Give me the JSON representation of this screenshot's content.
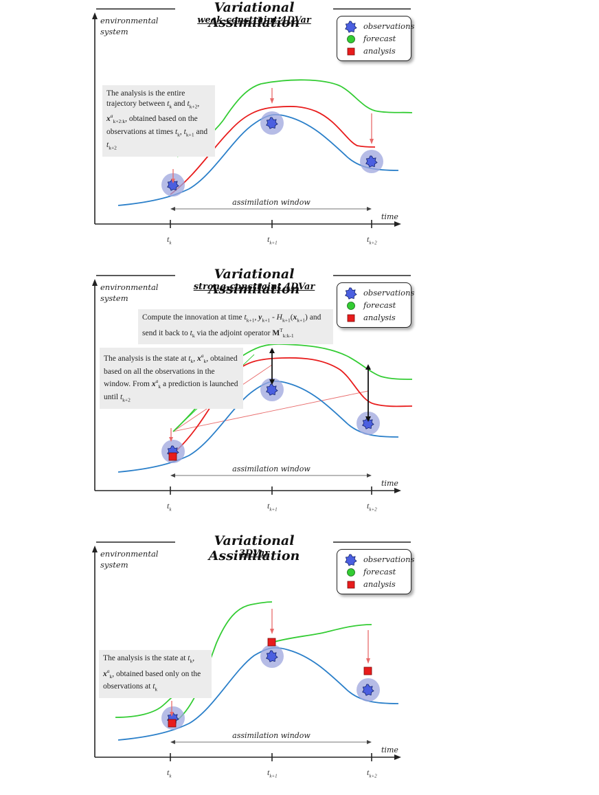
{
  "common": {
    "title": "Variational Assimilation",
    "ylabel_line1": "environmental",
    "ylabel_line2": "system",
    "time_label": "time",
    "window_label": "assimilation window",
    "ticks": [
      "t",
      "t",
      "t"
    ],
    "tick_subs": [
      "k",
      "k+1",
      "k+2"
    ],
    "legend": {
      "observations": "observations",
      "forecast": "forecast",
      "analysis": "analysis"
    },
    "colors": {
      "observation_fill": "#4b5fe0",
      "observation_halo": "#9ea6de",
      "forecast": "#33cc33",
      "analysis": "#e81c1c",
      "truth": "#2a7fc9",
      "arrow": "#e86a6a"
    }
  },
  "panels": [
    {
      "subtitle": "weak-constraint 4DVar",
      "note": "The analysis is the entire trajectory between t_k and t_k+2, x^a_k+2:k, obtained based on the observations at times t_k, t_k+1 and t_k+2"
    },
    {
      "subtitle": "strong-constraint 4DVar",
      "innovation_note": "Compute the innovation at time t_k+1, y_k+1 - H_k+1(x_k+1) and send it back to t_k via the adjoint operator M^T_k:k-1",
      "note": "The analysis is the state at t_k, x^a_k, obtained based on all the observations in the window. From x^a_k a prediction is launched until t_k+2"
    },
    {
      "subtitle": "3DVar",
      "note": "The analysis is the state at t_k, x^a_k, obtained based only on the observations at t_k"
    }
  ]
}
